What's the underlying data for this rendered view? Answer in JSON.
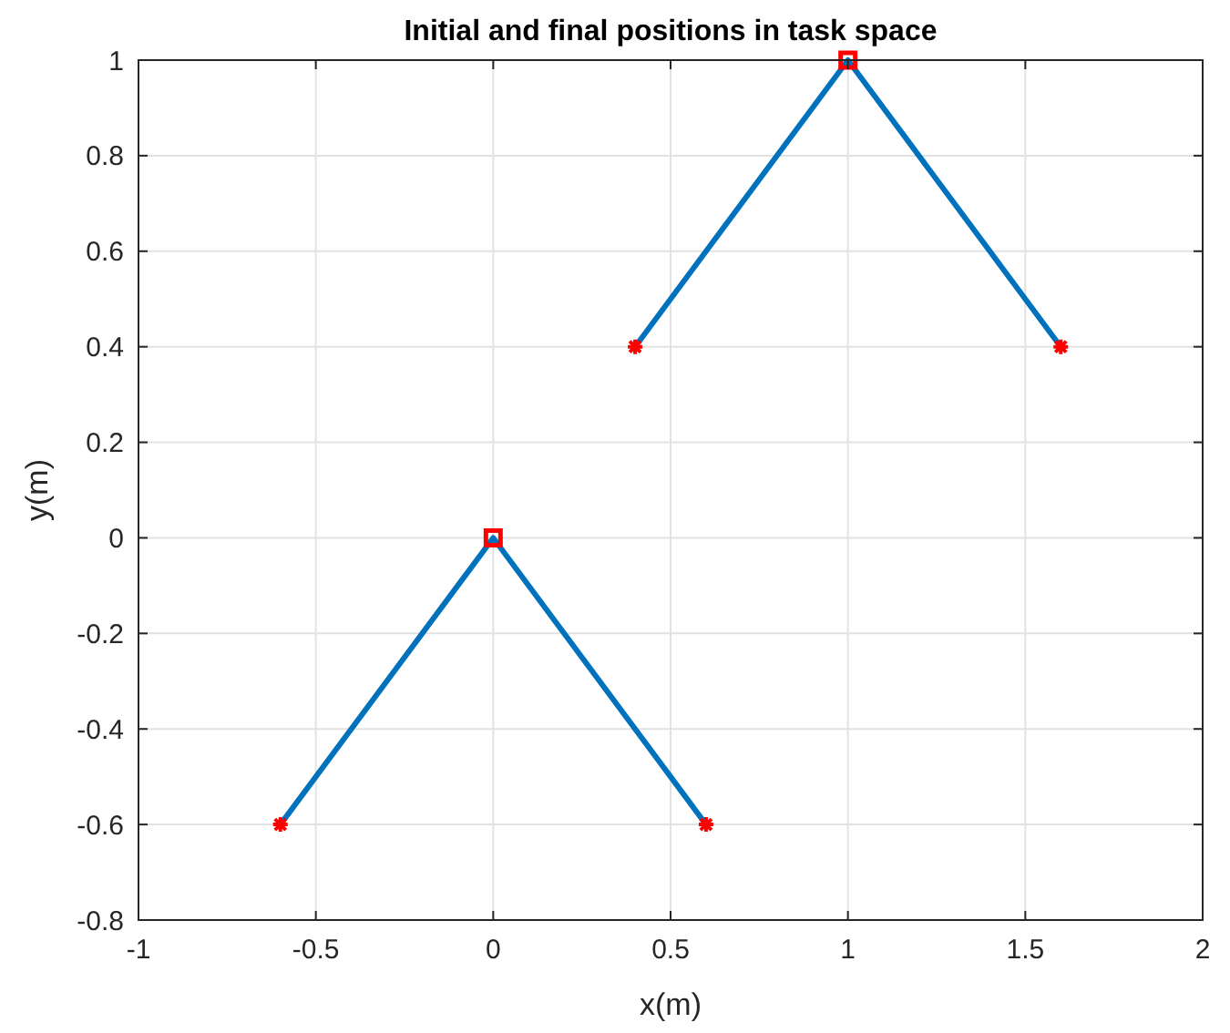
{
  "chart_data": {
    "type": "line",
    "title": "Initial and final positions in task space",
    "xlabel": "x(m)",
    "ylabel": "y(m)",
    "xlim": [
      -1,
      2
    ],
    "xticks": [
      -1,
      -0.5,
      0,
      0.5,
      1,
      1.5,
      2
    ],
    "ylim": [
      -0.8,
      1
    ],
    "yticks": [
      -0.8,
      -0.6,
      -0.4,
      -0.2,
      0,
      0.2,
      0.4,
      0.6,
      0.8,
      1
    ],
    "grid": true,
    "series": [
      {
        "color": "#0072bd",
        "x": [
          -0.6,
          0,
          0.6
        ],
        "values": [
          -0.6,
          0,
          -0.6
        ],
        "marker": "none"
      },
      {
        "color": "#0072bd",
        "x": [
          0.4,
          1,
          1.6
        ],
        "values": [
          0.4,
          1,
          0.4
        ],
        "marker": "none"
      },
      {
        "type": "scatter",
        "color": "#ff0000",
        "x": [
          -0.6,
          0.6,
          0.4,
          1.6
        ],
        "values": [
          -0.6,
          -0.6,
          0.4,
          0.4
        ],
        "marker": "cross"
      },
      {
        "type": "scatter",
        "color": "#ff0000",
        "x": [
          0,
          1
        ],
        "values": [
          0,
          1
        ],
        "marker": "square"
      }
    ]
  }
}
